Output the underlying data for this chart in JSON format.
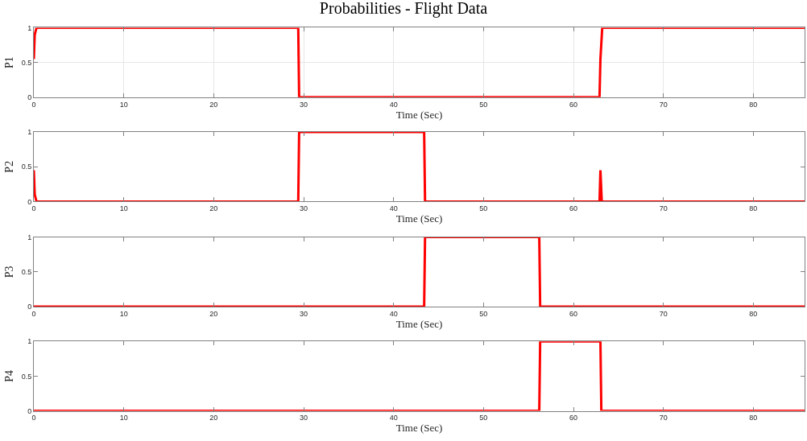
{
  "chart_data": [
    {
      "type": "line",
      "title": "Probabilities - Flight Data",
      "xlabel": "Time (Sec)",
      "ylabel": "P1",
      "grid": true,
      "xlim": [
        0,
        85.7
      ],
      "xticks": [
        0,
        10,
        20,
        30,
        40,
        50,
        60,
        70,
        80
      ],
      "ylim": [
        0,
        1
      ],
      "yticks": [
        0,
        0.5,
        1
      ],
      "marker": "none",
      "line_style": "solid",
      "series": [
        {
          "color": "#ff0000",
          "x": [
            0,
            0.1,
            0.3,
            29.4,
            29.5,
            62.9,
            63.0,
            63.2,
            85.7
          ],
          "values": [
            0.55,
            0.9,
            1,
            1,
            0,
            0,
            0.55,
            1,
            1
          ]
        }
      ]
    },
    {
      "type": "line",
      "xlabel": "Time (Sec)",
      "ylabel": "P2",
      "grid": false,
      "xlim": [
        0,
        85.7
      ],
      "xticks": [
        0,
        10,
        20,
        30,
        40,
        50,
        60,
        70,
        80
      ],
      "ylim": [
        0,
        1
      ],
      "yticks": [
        0,
        0.5,
        1
      ],
      "marker": "none",
      "line_style": "solid",
      "series": [
        {
          "color": "#ff0000",
          "x": [
            0,
            0.1,
            0.3,
            29.4,
            29.5,
            43.4,
            43.5,
            62.9,
            63.0,
            63.15,
            85.7
          ],
          "values": [
            0.45,
            0.1,
            0,
            0,
            1,
            1,
            0,
            0,
            0.45,
            0,
            0
          ]
        }
      ]
    },
    {
      "type": "line",
      "xlabel": "Time (Sec)",
      "ylabel": "P3",
      "grid": false,
      "xlim": [
        0,
        85.7
      ],
      "xticks": [
        0,
        10,
        20,
        30,
        40,
        50,
        60,
        70,
        80
      ],
      "ylim": [
        0,
        1
      ],
      "yticks": [
        0,
        0.5,
        1
      ],
      "marker": "none",
      "line_style": "solid",
      "series": [
        {
          "color": "#ff0000",
          "x": [
            0,
            43.4,
            43.5,
            56.2,
            56.3,
            85.7
          ],
          "values": [
            0,
            0,
            1,
            1,
            0,
            0
          ]
        }
      ]
    },
    {
      "type": "line",
      "xlabel": "Time (Sec)",
      "ylabel": "P4",
      "grid": false,
      "xlim": [
        0,
        85.7
      ],
      "xticks": [
        0,
        10,
        20,
        30,
        40,
        50,
        60,
        70,
        80
      ],
      "ylim": [
        0,
        1
      ],
      "yticks": [
        0,
        0.5,
        1
      ],
      "marker": "none",
      "line_style": "solid",
      "series": [
        {
          "color": "#ff0000",
          "x": [
            0,
            56.2,
            56.3,
            63.0,
            63.1,
            85.7
          ],
          "values": [
            0,
            0,
            1,
            1,
            0,
            0
          ]
        }
      ]
    }
  ]
}
